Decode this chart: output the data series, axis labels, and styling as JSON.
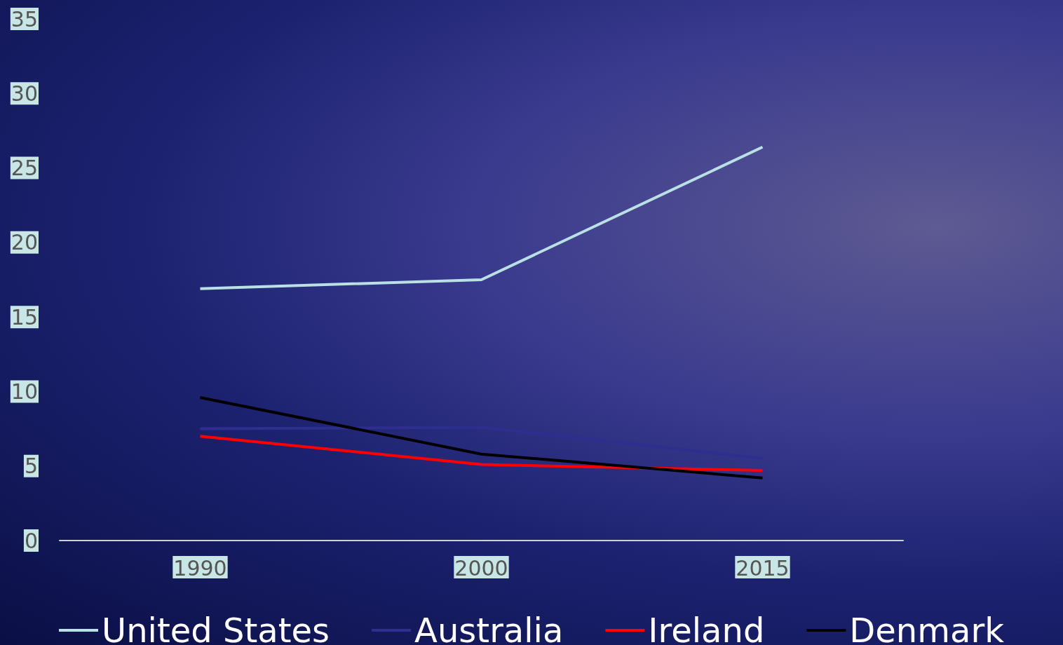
{
  "chart_data": {
    "type": "line",
    "categories": [
      "1990",
      "2000",
      "2015"
    ],
    "series": [
      {
        "name": "United States",
        "color": "#b9e0e4",
        "values": [
          16.9,
          17.5,
          26.4
        ]
      },
      {
        "name": "Australia",
        "color": "#2e2e8f",
        "values": [
          7.5,
          7.6,
          5.5
        ]
      },
      {
        "name": "Ireland",
        "color": "#ff0000",
        "values": [
          7.0,
          5.1,
          4.7
        ]
      },
      {
        "name": "Denmark",
        "color": "#000000",
        "values": [
          9.6,
          5.8,
          4.2
        ]
      }
    ],
    "ylim": [
      0,
      35
    ],
    "yticks": [
      0,
      5,
      10,
      15,
      20,
      25,
      30,
      35
    ],
    "grid": false,
    "legend": "bottom",
    "marker": "none",
    "line_style": "solid"
  }
}
